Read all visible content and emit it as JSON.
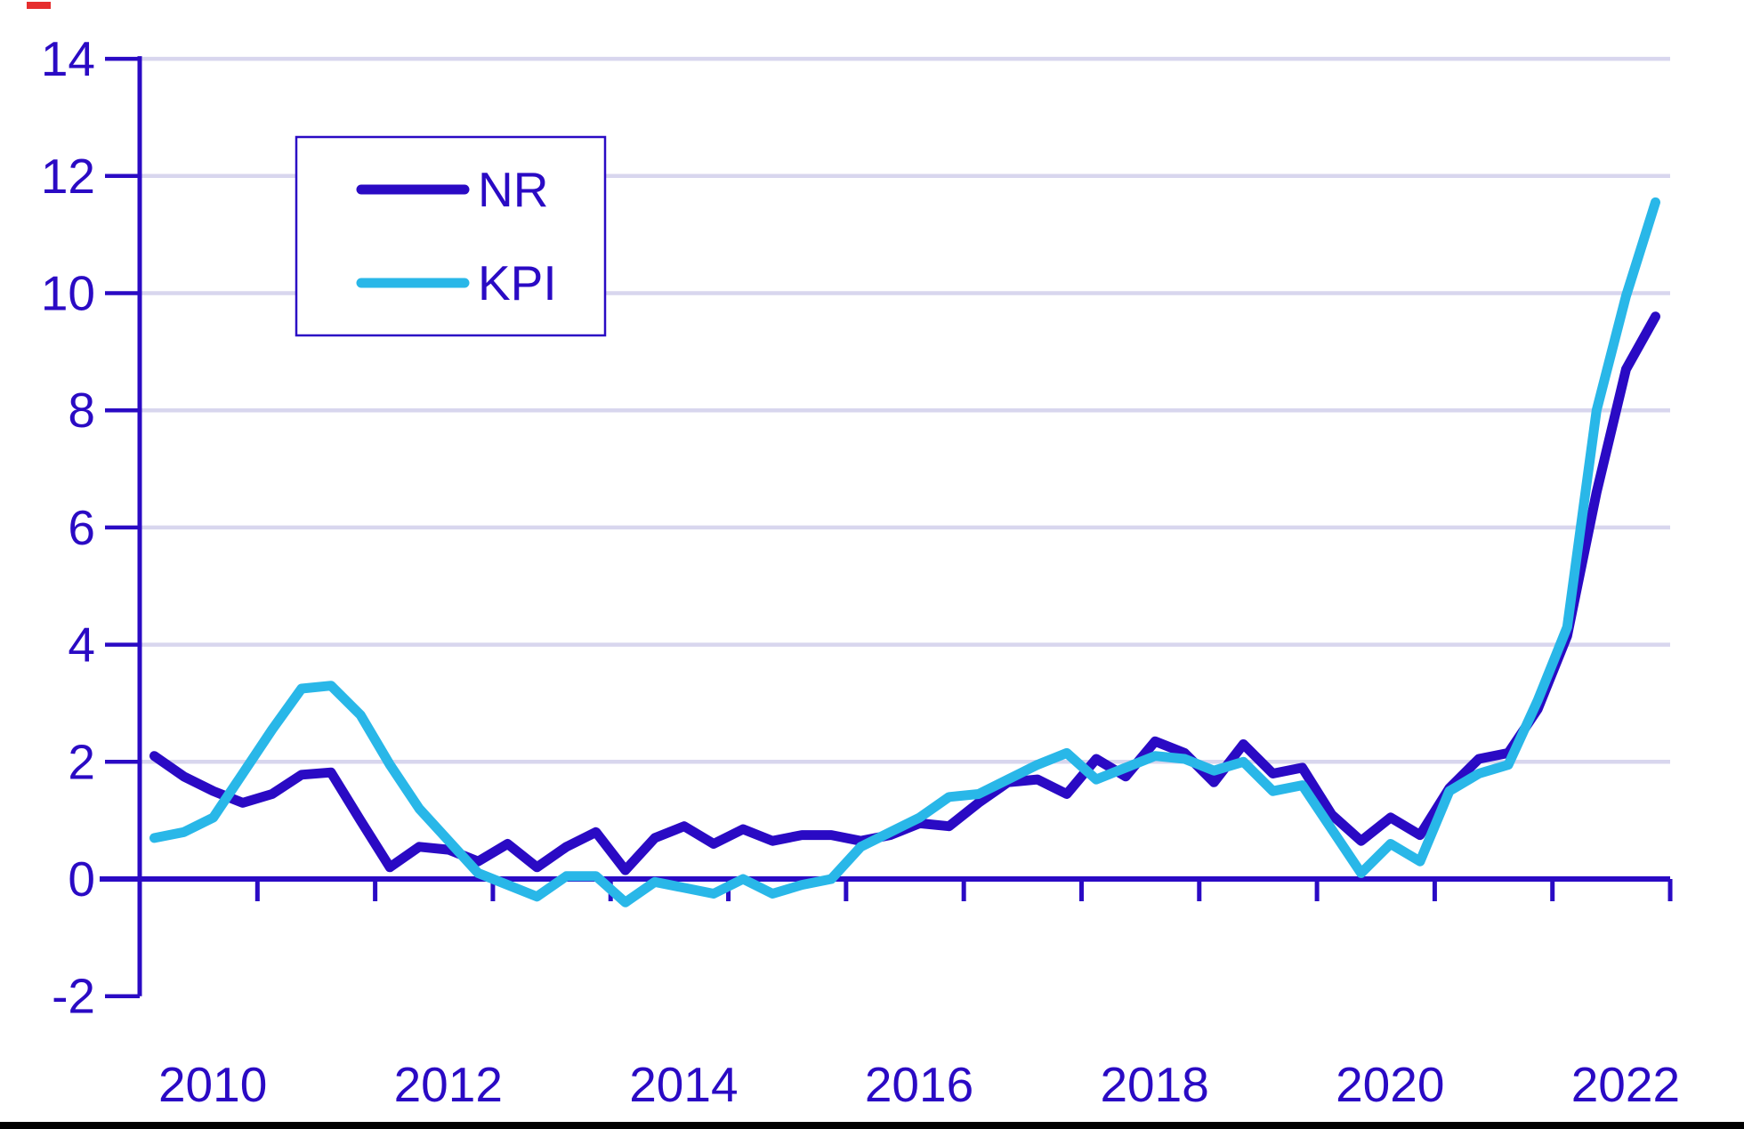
{
  "chart_data": {
    "type": "line",
    "title": "",
    "xlabel": "",
    "ylabel": "",
    "ylim": [
      -2,
      14
    ],
    "y_ticks": [
      14,
      12,
      10,
      8,
      6,
      4,
      2,
      0,
      -2
    ],
    "x_axis_tick_years": [
      2010,
      2011,
      2012,
      2013,
      2014,
      2015,
      2016,
      2017,
      2018,
      2019,
      2020,
      2021,
      2022,
      2023
    ],
    "x_labels": [
      "2010",
      "2012",
      "2014",
      "2016",
      "2018",
      "2020",
      "2022"
    ],
    "grid": "horizontal",
    "legend_position": "upper-left",
    "categories": [
      "2010Q1",
      "2010Q2",
      "2010Q3",
      "2010Q4",
      "2011Q1",
      "2011Q2",
      "2011Q3",
      "2011Q4",
      "2012Q1",
      "2012Q2",
      "2012Q3",
      "2012Q4",
      "2013Q1",
      "2013Q2",
      "2013Q3",
      "2013Q4",
      "2014Q1",
      "2014Q2",
      "2014Q3",
      "2014Q4",
      "2015Q1",
      "2015Q2",
      "2015Q3",
      "2015Q4",
      "2016Q1",
      "2016Q2",
      "2016Q3",
      "2016Q4",
      "2017Q1",
      "2017Q2",
      "2017Q3",
      "2017Q4",
      "2018Q1",
      "2018Q2",
      "2018Q3",
      "2018Q4",
      "2019Q1",
      "2019Q2",
      "2019Q3",
      "2019Q4",
      "2020Q1",
      "2020Q2",
      "2020Q3",
      "2020Q4",
      "2021Q1",
      "2021Q2",
      "2021Q3",
      "2021Q4",
      "2022Q1",
      "2022Q2",
      "2022Q3",
      "2022Q4"
    ],
    "series": [
      {
        "name": "NR",
        "color": "#2a0ac4",
        "values": [
          2.1,
          1.75,
          1.5,
          1.3,
          1.45,
          1.78,
          1.82,
          1.0,
          0.2,
          0.55,
          0.5,
          0.3,
          0.6,
          0.2,
          0.55,
          0.8,
          0.15,
          0.7,
          0.9,
          0.6,
          0.85,
          0.65,
          0.75,
          0.75,
          0.65,
          0.75,
          0.95,
          0.9,
          1.3,
          1.65,
          1.7,
          1.45,
          2.05,
          1.75,
          2.35,
          2.15,
          1.65,
          2.3,
          1.8,
          1.9,
          1.1,
          0.65,
          1.05,
          0.75,
          1.55,
          2.05,
          2.15,
          2.9,
          4.15,
          6.6,
          8.7,
          9.6
        ]
      },
      {
        "name": "KPI",
        "color": "#29b7e8",
        "values": [
          0.7,
          0.8,
          1.05,
          1.8,
          2.55,
          3.25,
          3.3,
          2.8,
          1.95,
          1.2,
          0.65,
          0.1,
          -0.1,
          -0.3,
          0.05,
          0.05,
          -0.4,
          -0.05,
          -0.15,
          -0.25,
          0.0,
          -0.25,
          -0.1,
          0.0,
          0.55,
          0.8,
          1.05,
          1.4,
          1.45,
          1.7,
          1.95,
          2.15,
          1.7,
          1.9,
          2.1,
          2.05,
          1.85,
          2.0,
          1.5,
          1.6,
          0.85,
          0.1,
          0.6,
          0.3,
          1.5,
          1.8,
          1.95,
          3.05,
          4.3,
          8.0,
          9.95,
          11.55
        ]
      }
    ]
  },
  "legend": {
    "items": [
      {
        "label": "NR"
      },
      {
        "label": "KPI"
      }
    ]
  },
  "colors": {
    "axis": "#2a0ac4",
    "tick_label": "#2a0ac4",
    "grid": "#d8d6ee",
    "nr_line": "#2a0ac4",
    "kpi_line": "#29b7e8",
    "legend_border": "#2a0ac4",
    "background": "#ffffff",
    "bottom_bar": "#000000",
    "top_left_mark": "#e62e2e"
  }
}
